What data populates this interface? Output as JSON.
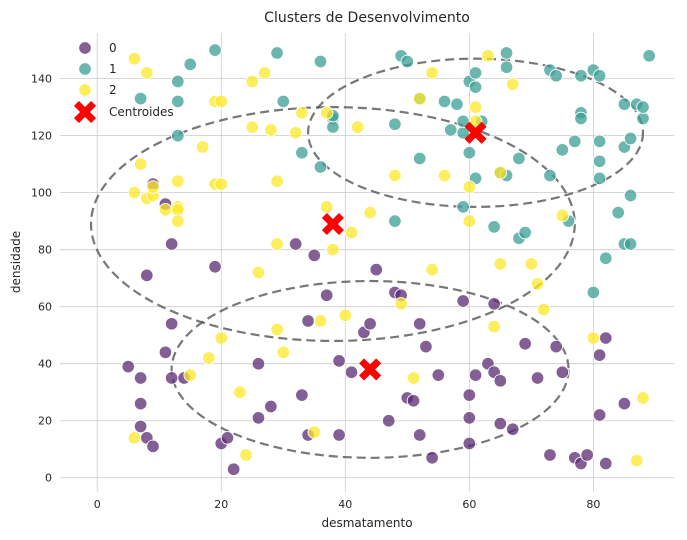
{
  "chart_data": {
    "type": "scatter",
    "title": "Clusters de Desenvolvimento",
    "xlabel": "desmatamento",
    "ylabel": "densidade",
    "xlim": [
      -6,
      93
    ],
    "ylim": [
      -5,
      156
    ],
    "xticks": [
      0,
      20,
      40,
      60,
      80
    ],
    "yticks": [
      0,
      20,
      40,
      60,
      80,
      100,
      120,
      140
    ],
    "grid": true,
    "legend_position": "top-left",
    "series": [
      {
        "name": "0",
        "color": "#5b2a73",
        "points": [
          [
            5,
            39
          ],
          [
            7,
            35
          ],
          [
            7,
            26
          ],
          [
            7,
            18
          ],
          [
            8,
            14
          ],
          [
            8,
            71
          ],
          [
            9,
            103
          ],
          [
            9,
            11
          ],
          [
            11,
            96
          ],
          [
            11,
            44
          ],
          [
            12,
            35
          ],
          [
            12,
            54
          ],
          [
            12,
            82
          ],
          [
            14,
            35
          ],
          [
            19,
            74
          ],
          [
            20,
            12
          ],
          [
            21,
            14
          ],
          [
            22,
            3
          ],
          [
            26,
            21
          ],
          [
            26,
            40
          ],
          [
            28,
            25
          ],
          [
            32,
            82
          ],
          [
            33,
            29
          ],
          [
            34,
            15
          ],
          [
            34,
            55
          ],
          [
            35,
            78
          ],
          [
            37,
            64
          ],
          [
            39,
            41
          ],
          [
            39,
            15
          ],
          [
            41,
            37
          ],
          [
            43,
            51
          ],
          [
            44,
            54
          ],
          [
            45,
            73
          ],
          [
            47,
            20
          ],
          [
            48,
            65
          ],
          [
            49,
            64
          ],
          [
            50,
            28
          ],
          [
            51,
            27
          ],
          [
            52,
            15
          ],
          [
            52,
            54
          ],
          [
            53,
            46
          ],
          [
            54,
            7
          ],
          [
            55,
            36
          ],
          [
            59,
            62
          ],
          [
            60,
            29
          ],
          [
            60,
            21
          ],
          [
            60,
            12
          ],
          [
            61,
            36
          ],
          [
            63,
            40
          ],
          [
            64,
            61
          ],
          [
            64,
            37
          ],
          [
            65,
            19
          ],
          [
            65,
            34
          ],
          [
            67,
            17
          ],
          [
            69,
            47
          ],
          [
            71,
            35
          ],
          [
            73,
            8
          ],
          [
            74,
            46
          ],
          [
            75,
            37
          ],
          [
            77,
            7
          ],
          [
            78,
            5
          ],
          [
            79,
            8
          ],
          [
            81,
            43
          ],
          [
            81,
            22
          ],
          [
            82,
            49
          ],
          [
            82,
            5
          ],
          [
            85,
            26
          ]
        ]
      },
      {
        "name": "1",
        "color": "#3a9e94",
        "points": [
          [
            7,
            133
          ],
          [
            13,
            139
          ],
          [
            13,
            132
          ],
          [
            13,
            120
          ],
          [
            15,
            145
          ],
          [
            19,
            150
          ],
          [
            29,
            149
          ],
          [
            30,
            132
          ],
          [
            33,
            114
          ],
          [
            36,
            109
          ],
          [
            36,
            146
          ],
          [
            38,
            126
          ],
          [
            38,
            123
          ],
          [
            38,
            127
          ],
          [
            48,
            90
          ],
          [
            48,
            124
          ],
          [
            49,
            148
          ],
          [
            50,
            146
          ],
          [
            52,
            133
          ],
          [
            52,
            112
          ],
          [
            56,
            132
          ],
          [
            57,
            122
          ],
          [
            58,
            131
          ],
          [
            59,
            95
          ],
          [
            59,
            121
          ],
          [
            59,
            125
          ],
          [
            60,
            139
          ],
          [
            60,
            114
          ],
          [
            61,
            142
          ],
          [
            61,
            137
          ],
          [
            61,
            105
          ],
          [
            62,
            125
          ],
          [
            64,
            88
          ],
          [
            65,
            107
          ],
          [
            66,
            106
          ],
          [
            66,
            144
          ],
          [
            66,
            149
          ],
          [
            68,
            84
          ],
          [
            68,
            112
          ],
          [
            69,
            86
          ],
          [
            73,
            106
          ],
          [
            73,
            143
          ],
          [
            74,
            141
          ],
          [
            75,
            115
          ],
          [
            76,
            90
          ],
          [
            77,
            118
          ],
          [
            78,
            128
          ],
          [
            78,
            126
          ],
          [
            78,
            141
          ],
          [
            80,
            65
          ],
          [
            80,
            143
          ],
          [
            81,
            141
          ],
          [
            81,
            118
          ],
          [
            81,
            105
          ],
          [
            81,
            111
          ],
          [
            82,
            77
          ],
          [
            84,
            93
          ],
          [
            85,
            116
          ],
          [
            85,
            82
          ],
          [
            85,
            131
          ],
          [
            86,
            119
          ],
          [
            86,
            99
          ],
          [
            86,
            82
          ],
          [
            87,
            131
          ],
          [
            88,
            126
          ],
          [
            88,
            130
          ],
          [
            89,
            148
          ]
        ]
      },
      {
        "name": "2",
        "color": "#fde725",
        "points": [
          [
            6,
            100
          ],
          [
            6,
            14
          ],
          [
            6,
            147
          ],
          [
            7,
            110
          ],
          [
            8,
            142
          ],
          [
            8,
            98
          ],
          [
            9,
            99
          ],
          [
            9,
            102
          ],
          [
            11,
            94
          ],
          [
            13,
            95
          ],
          [
            13,
            94
          ],
          [
            13,
            90
          ],
          [
            13,
            104
          ],
          [
            15,
            36
          ],
          [
            17,
            116
          ],
          [
            18,
            42
          ],
          [
            19,
            103
          ],
          [
            19,
            132
          ],
          [
            20,
            103
          ],
          [
            20,
            132
          ],
          [
            20,
            49
          ],
          [
            23,
            30
          ],
          [
            24,
            8
          ],
          [
            25,
            139
          ],
          [
            25,
            123
          ],
          [
            26,
            72
          ],
          [
            27,
            142
          ],
          [
            28,
            122
          ],
          [
            29,
            52
          ],
          [
            29,
            104
          ],
          [
            29,
            82
          ],
          [
            30,
            44
          ],
          [
            32,
            121
          ],
          [
            33,
            128
          ],
          [
            35,
            16
          ],
          [
            36,
            55
          ],
          [
            37,
            95
          ],
          [
            37,
            128
          ],
          [
            38,
            80
          ],
          [
            40,
            57
          ],
          [
            41,
            86
          ],
          [
            42,
            123
          ],
          [
            44,
            93
          ],
          [
            48,
            106
          ],
          [
            49,
            61
          ],
          [
            51,
            35
          ],
          [
            52,
            133
          ],
          [
            54,
            73
          ],
          [
            54,
            142
          ],
          [
            56,
            106
          ],
          [
            60,
            90
          ],
          [
            60,
            102
          ],
          [
            61,
            130
          ],
          [
            61,
            125
          ],
          [
            63,
            148
          ],
          [
            64,
            53
          ],
          [
            65,
            75
          ],
          [
            65,
            107
          ],
          [
            67,
            138
          ],
          [
            70,
            75
          ],
          [
            71,
            68
          ],
          [
            72,
            59
          ],
          [
            75,
            92
          ],
          [
            80,
            49
          ],
          [
            87,
            6
          ],
          [
            88,
            28
          ]
        ]
      }
    ],
    "centroids": {
      "name": "Centroides",
      "color": "#ff0000",
      "points": [
        [
          38,
          89
        ],
        [
          44,
          38
        ],
        [
          61,
          121
        ]
      ]
    },
    "ellipses": [
      {
        "cx": 38,
        "cy": 89,
        "rx": 39,
        "ry": 41
      },
      {
        "cx": 44,
        "cy": 38,
        "rx": 32,
        "ry": 31
      },
      {
        "cx": 61,
        "cy": 121,
        "rx": 27,
        "ry": 26
      }
    ]
  }
}
